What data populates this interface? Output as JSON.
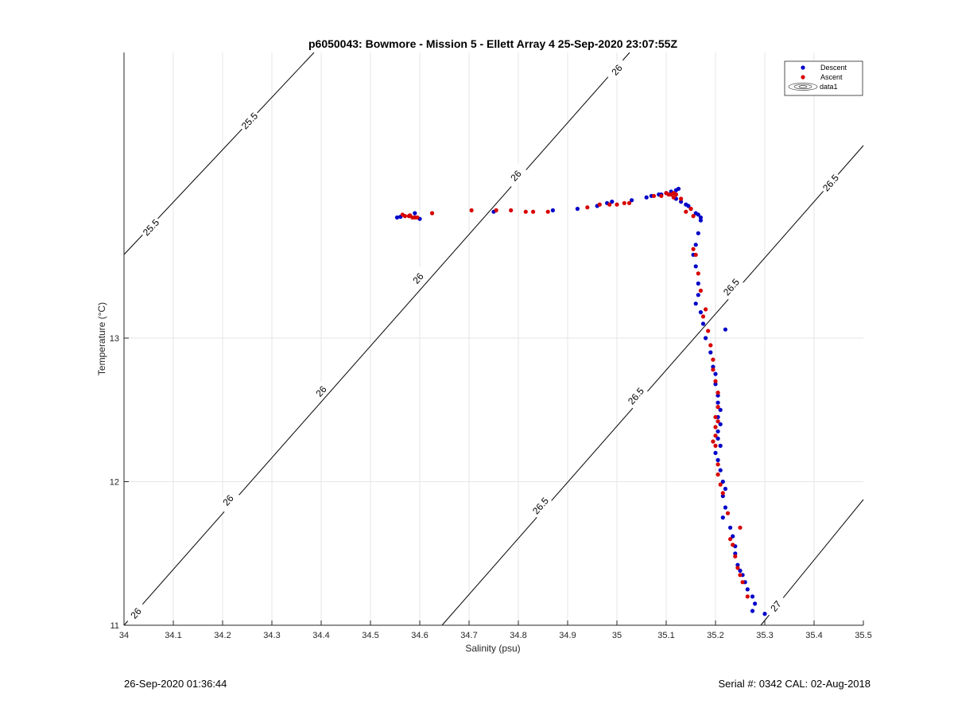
{
  "chart_data": {
    "type": "scatter",
    "title": "p6050043: Bowmore - Mission 5 - Ellett Array 4 25-Sep-2020 23:07:55Z",
    "xlabel": "Salinity (psu)",
    "ylabel": "Temperature (°C)",
    "xlim": [
      34,
      35.5
    ],
    "ylim": [
      11,
      15
    ],
    "xticks": [
      "34",
      "34.1",
      "34.2",
      "34.3",
      "34.4",
      "34.5",
      "34.6",
      "34.7",
      "34.8",
      "34.9",
      "35",
      "35.1",
      "35.2",
      "35.3",
      "35.4",
      "35.5"
    ],
    "yticks": [
      "11",
      "12",
      "13"
    ],
    "ytick_values": [
      11,
      12,
      13
    ],
    "grid": true,
    "legend_position": "top-right",
    "legend": [
      "Descent",
      "Ascent",
      "data1"
    ],
    "series": [
      {
        "name": "Descent",
        "color": "#0000c8",
        "points": [
          [
            34.554,
            13.84
          ],
          [
            34.561,
            13.845
          ],
          [
            34.59,
            13.87
          ],
          [
            34.6,
            13.83
          ],
          [
            34.75,
            13.88
          ],
          [
            34.87,
            13.89
          ],
          [
            34.92,
            13.9
          ],
          [
            34.96,
            13.92
          ],
          [
            34.98,
            13.94
          ],
          [
            34.99,
            13.95
          ],
          [
            35.03,
            13.96
          ],
          [
            35.06,
            13.98
          ],
          [
            35.07,
            13.99
          ],
          [
            35.085,
            14.0
          ],
          [
            35.09,
            14.0
          ],
          [
            35.1,
            14.01
          ],
          [
            35.11,
            14.02
          ],
          [
            35.12,
            14.03
          ],
          [
            35.125,
            14.04
          ],
          [
            35.12,
            13.97
          ],
          [
            35.13,
            13.95
          ],
          [
            35.14,
            13.93
          ],
          [
            35.145,
            13.92
          ],
          [
            35.15,
            13.9
          ],
          [
            35.16,
            13.87
          ],
          [
            35.165,
            13.86
          ],
          [
            35.17,
            13.84
          ],
          [
            35.17,
            13.82
          ],
          [
            35.165,
            13.73
          ],
          [
            35.16,
            13.65
          ],
          [
            35.155,
            13.58
          ],
          [
            35.16,
            13.5
          ],
          [
            35.165,
            13.38
          ],
          [
            35.165,
            13.3
          ],
          [
            35.16,
            13.24
          ],
          [
            35.17,
            13.18
          ],
          [
            35.175,
            13.1
          ],
          [
            35.22,
            13.06
          ],
          [
            35.18,
            13.0
          ],
          [
            35.19,
            12.9
          ],
          [
            35.195,
            12.8
          ],
          [
            35.2,
            12.75
          ],
          [
            35.2,
            12.68
          ],
          [
            35.205,
            12.6
          ],
          [
            35.205,
            12.55
          ],
          [
            35.21,
            12.5
          ],
          [
            35.205,
            12.45
          ],
          [
            35.21,
            12.4
          ],
          [
            35.205,
            12.35
          ],
          [
            35.205,
            12.3
          ],
          [
            35.21,
            12.25
          ],
          [
            35.2,
            12.2
          ],
          [
            35.205,
            12.15
          ],
          [
            35.21,
            12.08
          ],
          [
            35.215,
            12.0
          ],
          [
            35.22,
            11.95
          ],
          [
            35.215,
            11.9
          ],
          [
            35.22,
            11.82
          ],
          [
            35.215,
            11.75
          ],
          [
            35.23,
            11.68
          ],
          [
            35.235,
            11.62
          ],
          [
            35.24,
            11.55
          ],
          [
            35.24,
            11.5
          ],
          [
            35.245,
            11.42
          ],
          [
            35.25,
            11.38
          ],
          [
            35.255,
            11.35
          ],
          [
            35.26,
            11.3
          ],
          [
            35.265,
            11.25
          ],
          [
            35.275,
            11.2
          ],
          [
            35.28,
            11.15
          ],
          [
            35.275,
            11.1
          ],
          [
            35.3,
            11.08
          ]
        ]
      },
      {
        "name": "Ascent",
        "color": "#d70000",
        "points": [
          [
            34.565,
            13.86
          ],
          [
            34.57,
            13.85
          ],
          [
            34.578,
            13.85
          ],
          [
            34.585,
            13.84
          ],
          [
            34.59,
            13.84
          ],
          [
            34.595,
            13.84
          ],
          [
            34.58,
            13.855
          ],
          [
            34.625,
            13.87
          ],
          [
            34.705,
            13.89
          ],
          [
            34.755,
            13.89
          ],
          [
            34.785,
            13.89
          ],
          [
            34.815,
            13.88
          ],
          [
            34.83,
            13.88
          ],
          [
            34.86,
            13.88
          ],
          [
            34.94,
            13.91
          ],
          [
            34.965,
            13.93
          ],
          [
            34.985,
            13.93
          ],
          [
            35.0,
            13.93
          ],
          [
            35.015,
            13.94
          ],
          [
            35.025,
            13.94
          ],
          [
            35.075,
            13.99
          ],
          [
            35.09,
            13.99
          ],
          [
            35.1,
            14.01
          ],
          [
            35.105,
            14.0
          ],
          [
            35.11,
            14.0
          ],
          [
            35.115,
            14.01
          ],
          [
            35.12,
            14.0
          ],
          [
            35.115,
            13.98
          ],
          [
            35.13,
            13.97
          ],
          [
            35.15,
            13.9
          ],
          [
            35.155,
            13.85
          ],
          [
            35.14,
            13.88
          ],
          [
            35.155,
            13.62
          ],
          [
            35.16,
            13.58
          ],
          [
            35.165,
            13.45
          ],
          [
            35.17,
            13.33
          ],
          [
            35.18,
            13.2
          ],
          [
            35.175,
            13.15
          ],
          [
            35.185,
            13.05
          ],
          [
            35.19,
            12.95
          ],
          [
            35.195,
            12.85
          ],
          [
            35.195,
            12.78
          ],
          [
            35.2,
            12.7
          ],
          [
            35.205,
            12.62
          ],
          [
            35.205,
            12.52
          ],
          [
            35.2,
            12.45
          ],
          [
            35.205,
            12.42
          ],
          [
            35.2,
            12.38
          ],
          [
            35.2,
            12.32
          ],
          [
            35.195,
            12.28
          ],
          [
            35.2,
            12.25
          ],
          [
            35.205,
            12.12
          ],
          [
            35.205,
            12.05
          ],
          [
            35.21,
            11.98
          ],
          [
            35.215,
            11.92
          ],
          [
            35.225,
            11.78
          ],
          [
            35.25,
            11.68
          ],
          [
            35.23,
            11.6
          ],
          [
            35.235,
            11.56
          ],
          [
            35.24,
            11.48
          ],
          [
            35.245,
            11.4
          ],
          [
            35.25,
            11.35
          ],
          [
            35.255,
            11.3
          ],
          [
            35.265,
            11.2
          ]
        ]
      }
    ],
    "contour_labels": [
      "25.5",
      "25.5",
      "26",
      "26",
      "26",
      "26",
      "26",
      "26",
      "26.5",
      "26.5",
      "26.5",
      "26.5",
      "27"
    ]
  },
  "footer": {
    "timestamp": "26-Sep-2020 01:36:44",
    "serial": "Serial #: 0342  CAL: 02-Aug-2018"
  }
}
